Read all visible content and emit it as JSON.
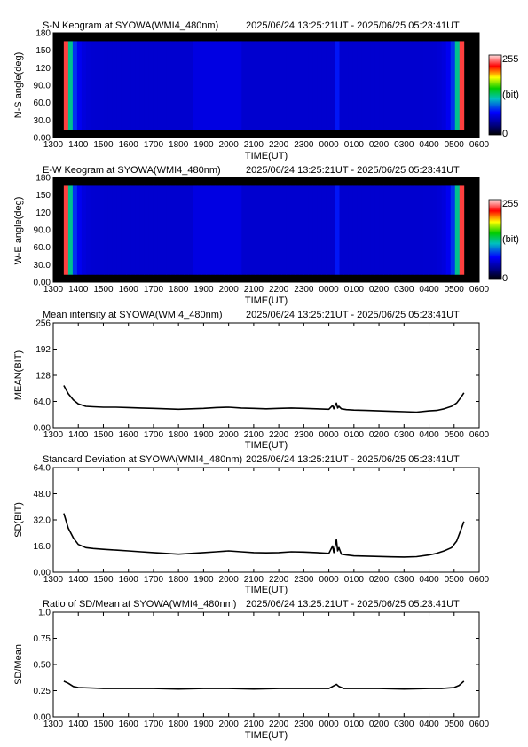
{
  "panels": [
    {
      "title_left": "S-N Keogram at SYOWA(WMI4_480nm)",
      "title_right": "2025/06/24 13:25:21UT - 2025/06/25 05:23:41UT",
      "xlabel": "TIME(UT)",
      "ylabel": "N-S angle(deg)"
    },
    {
      "title_left": "E-W Keogram at SYOWA(WMI4_480nm)",
      "title_right": "2025/06/24 13:25:21UT - 2025/06/25 05:23:41UT",
      "xlabel": "TIME(UT)",
      "ylabel": "W-E angle(deg)"
    },
    {
      "title_left": "Mean intensity at SYOWA(WMI4_480nm)",
      "title_right": "2025/06/24 13:25:21UT - 2025/06/25 05:23:41UT",
      "xlabel": "TIME(UT)",
      "ylabel": "MEAN(BIT)"
    },
    {
      "title_left": "Standard Deviation at SYOWA(WMI4_480nm)",
      "title_right": "2025/06/24 13:25:21UT - 2025/06/25 05:23:41UT",
      "xlabel": "TIME(UT)",
      "ylabel": "SD(BIT)"
    },
    {
      "title_left": "Ratio of SD/Mean at SYOWA(WMI4_480nm)",
      "title_right": "2025/06/24 13:25:21UT - 2025/06/25 05:23:41UT",
      "xlabel": "TIME(UT)",
      "ylabel": "SD/Mean"
    }
  ],
  "colorbar": {
    "max_label": "255",
    "unit_label": "(bit)",
    "min_label": "0"
  },
  "chart_data": [
    {
      "type": "heatmap",
      "title": "S-N Keogram at SYOWA(WMI4_480nm)",
      "time_range": "2025/06/24 13:25:21UT - 2025/06/25 05:23:41UT",
      "xlabel": "TIME(UT)",
      "ylabel": "N-S angle(deg)",
      "x_ticks": [
        "1300",
        "1400",
        "1500",
        "1600",
        "1700",
        "1800",
        "1900",
        "2000",
        "2100",
        "2200",
        "2300",
        "0000",
        "0100",
        "0200",
        "0300",
        "0400",
        "0500",
        "0600"
      ],
      "x_range_hours": [
        13,
        30
      ],
      "data_range_hours": [
        13.42,
        29.39
      ],
      "y_ticks": [
        "0.00",
        "30.0",
        "60.0",
        "90.0",
        "120",
        "150",
        "180"
      ],
      "ylim": [
        0,
        180
      ],
      "colorscale": {
        "min": 0,
        "max": 255,
        "unit": "(bit)"
      },
      "cell_values_bit": {
        "edges": 230,
        "sky": 55,
        "faint_band_0020UT": 75,
        "data_gap_rows": 0
      },
      "band_hour": 24.33
    },
    {
      "type": "heatmap",
      "title": "E-W Keogram at SYOWA(WMI4_480nm)",
      "time_range": "2025/06/24 13:25:21UT - 2025/06/25 05:23:41UT",
      "xlabel": "TIME(UT)",
      "ylabel": "W-E angle(deg)",
      "x_ticks": [
        "1300",
        "1400",
        "1500",
        "1600",
        "1700",
        "1800",
        "1900",
        "2000",
        "2100",
        "2200",
        "2300",
        "0000",
        "0100",
        "0200",
        "0300",
        "0400",
        "0500",
        "0600"
      ],
      "x_range_hours": [
        13,
        30
      ],
      "data_range_hours": [
        13.42,
        29.39
      ],
      "y_ticks": [
        "0.00",
        "30.0",
        "60.0",
        "90.0",
        "120",
        "150",
        "180"
      ],
      "ylim": [
        0,
        180
      ],
      "colorscale": {
        "min": 0,
        "max": 255,
        "unit": "(bit)"
      },
      "cell_values_bit": {
        "edges": 230,
        "sky": 55,
        "faint_band_0020UT": 75,
        "data_gap_rows": 0
      },
      "band_hour": 24.33
    },
    {
      "type": "line",
      "title": "Mean intensity at SYOWA(WMI4_480nm)",
      "xlabel": "TIME(UT)",
      "ylabel": "MEAN(BIT)",
      "x_ticks": [
        "1300",
        "1400",
        "1500",
        "1600",
        "1700",
        "1800",
        "1900",
        "2000",
        "2100",
        "2200",
        "2300",
        "0000",
        "0100",
        "0200",
        "0300",
        "0400",
        "0500",
        "0600"
      ],
      "y_ticks": [
        "0.00",
        "64.0",
        "128",
        "192",
        "256"
      ],
      "xlim": [
        13,
        30
      ],
      "ylim": [
        0,
        256
      ],
      "x": [
        13.42,
        13.6,
        13.8,
        14.0,
        14.3,
        14.6,
        15.0,
        15.5,
        16.0,
        16.5,
        17.0,
        17.5,
        18.0,
        18.5,
        19.0,
        19.5,
        20.0,
        20.5,
        21.0,
        21.5,
        22.0,
        22.5,
        23.0,
        23.5,
        24.0,
        24.15,
        24.2,
        24.3,
        24.35,
        24.4,
        24.5,
        24.7,
        25.0,
        25.5,
        26.0,
        26.5,
        27.0,
        27.5,
        28.0,
        28.3,
        28.6,
        28.9,
        29.1,
        29.25,
        29.39
      ],
      "y": [
        103,
        83,
        68,
        58,
        52,
        51,
        50,
        50,
        49,
        48,
        47,
        46,
        45,
        46,
        47,
        49,
        50,
        48,
        47,
        46,
        47,
        48,
        47,
        46,
        45,
        54,
        46,
        60,
        48,
        52,
        46,
        44,
        43,
        42,
        41,
        40,
        39,
        38,
        41,
        42,
        46,
        52,
        60,
        72,
        85
      ]
    },
    {
      "type": "line",
      "title": "Standard Deviation at SYOWA(WMI4_480nm)",
      "xlabel": "TIME(UT)",
      "ylabel": "SD(BIT)",
      "x_ticks": [
        "1300",
        "1400",
        "1500",
        "1600",
        "1700",
        "1800",
        "1900",
        "2000",
        "2100",
        "2200",
        "2300",
        "0000",
        "0100",
        "0200",
        "0300",
        "0400",
        "0500",
        "0600"
      ],
      "y_ticks": [
        "0.00",
        "16.0",
        "32.0",
        "48.0",
        "64.0"
      ],
      "xlim": [
        13,
        30
      ],
      "ylim": [
        0,
        64
      ],
      "x": [
        13.42,
        13.6,
        13.8,
        14.0,
        14.3,
        14.6,
        15.0,
        15.5,
        16.0,
        16.5,
        17.0,
        17.5,
        18.0,
        18.5,
        19.0,
        19.5,
        20.0,
        20.5,
        21.0,
        21.5,
        22.0,
        22.5,
        23.0,
        23.5,
        24.0,
        24.15,
        24.2,
        24.3,
        24.35,
        24.4,
        24.5,
        24.7,
        25.0,
        25.5,
        26.0,
        26.5,
        27.0,
        27.5,
        28.0,
        28.3,
        28.6,
        28.9,
        29.1,
        29.25,
        29.39
      ],
      "y": [
        36,
        27,
        21,
        17,
        15,
        14.5,
        14,
        13.5,
        13,
        12.5,
        12,
        11.5,
        11,
        11.5,
        12,
        12.5,
        13,
        12.5,
        12,
        11.8,
        12,
        12.5,
        12.3,
        12,
        11.5,
        16,
        12,
        20,
        13,
        15,
        11,
        10.5,
        10,
        9.8,
        9.6,
        9.4,
        9.3,
        9.5,
        10.5,
        11.5,
        13,
        15,
        19,
        25,
        31
      ]
    },
    {
      "type": "line",
      "title": "Ratio of SD/Mean at SYOWA(WMI4_480nm)",
      "xlabel": "TIME(UT)",
      "ylabel": "SD/Mean",
      "x_ticks": [
        "1300",
        "1400",
        "1500",
        "1600",
        "1700",
        "1800",
        "1900",
        "2000",
        "2100",
        "2200",
        "2300",
        "0000",
        "0100",
        "0200",
        "0300",
        "0400",
        "0500",
        "0600"
      ],
      "y_ticks": [
        "0.00",
        "0.25",
        "0.50",
        "0.75",
        "1.0"
      ],
      "xlim": [
        13,
        30
      ],
      "ylim": [
        0,
        1
      ],
      "x": [
        13.42,
        13.6,
        13.8,
        14.0,
        14.5,
        15.0,
        16.0,
        17.0,
        18.0,
        19.0,
        20.0,
        21.0,
        22.0,
        23.0,
        24.0,
        24.15,
        24.3,
        24.4,
        24.6,
        25.0,
        26.0,
        27.0,
        28.0,
        28.5,
        29.0,
        29.2,
        29.39
      ],
      "y": [
        0.34,
        0.32,
        0.29,
        0.28,
        0.275,
        0.27,
        0.27,
        0.27,
        0.265,
        0.27,
        0.27,
        0.265,
        0.27,
        0.27,
        0.27,
        0.29,
        0.31,
        0.29,
        0.27,
        0.27,
        0.27,
        0.265,
        0.27,
        0.27,
        0.28,
        0.3,
        0.34
      ]
    }
  ]
}
